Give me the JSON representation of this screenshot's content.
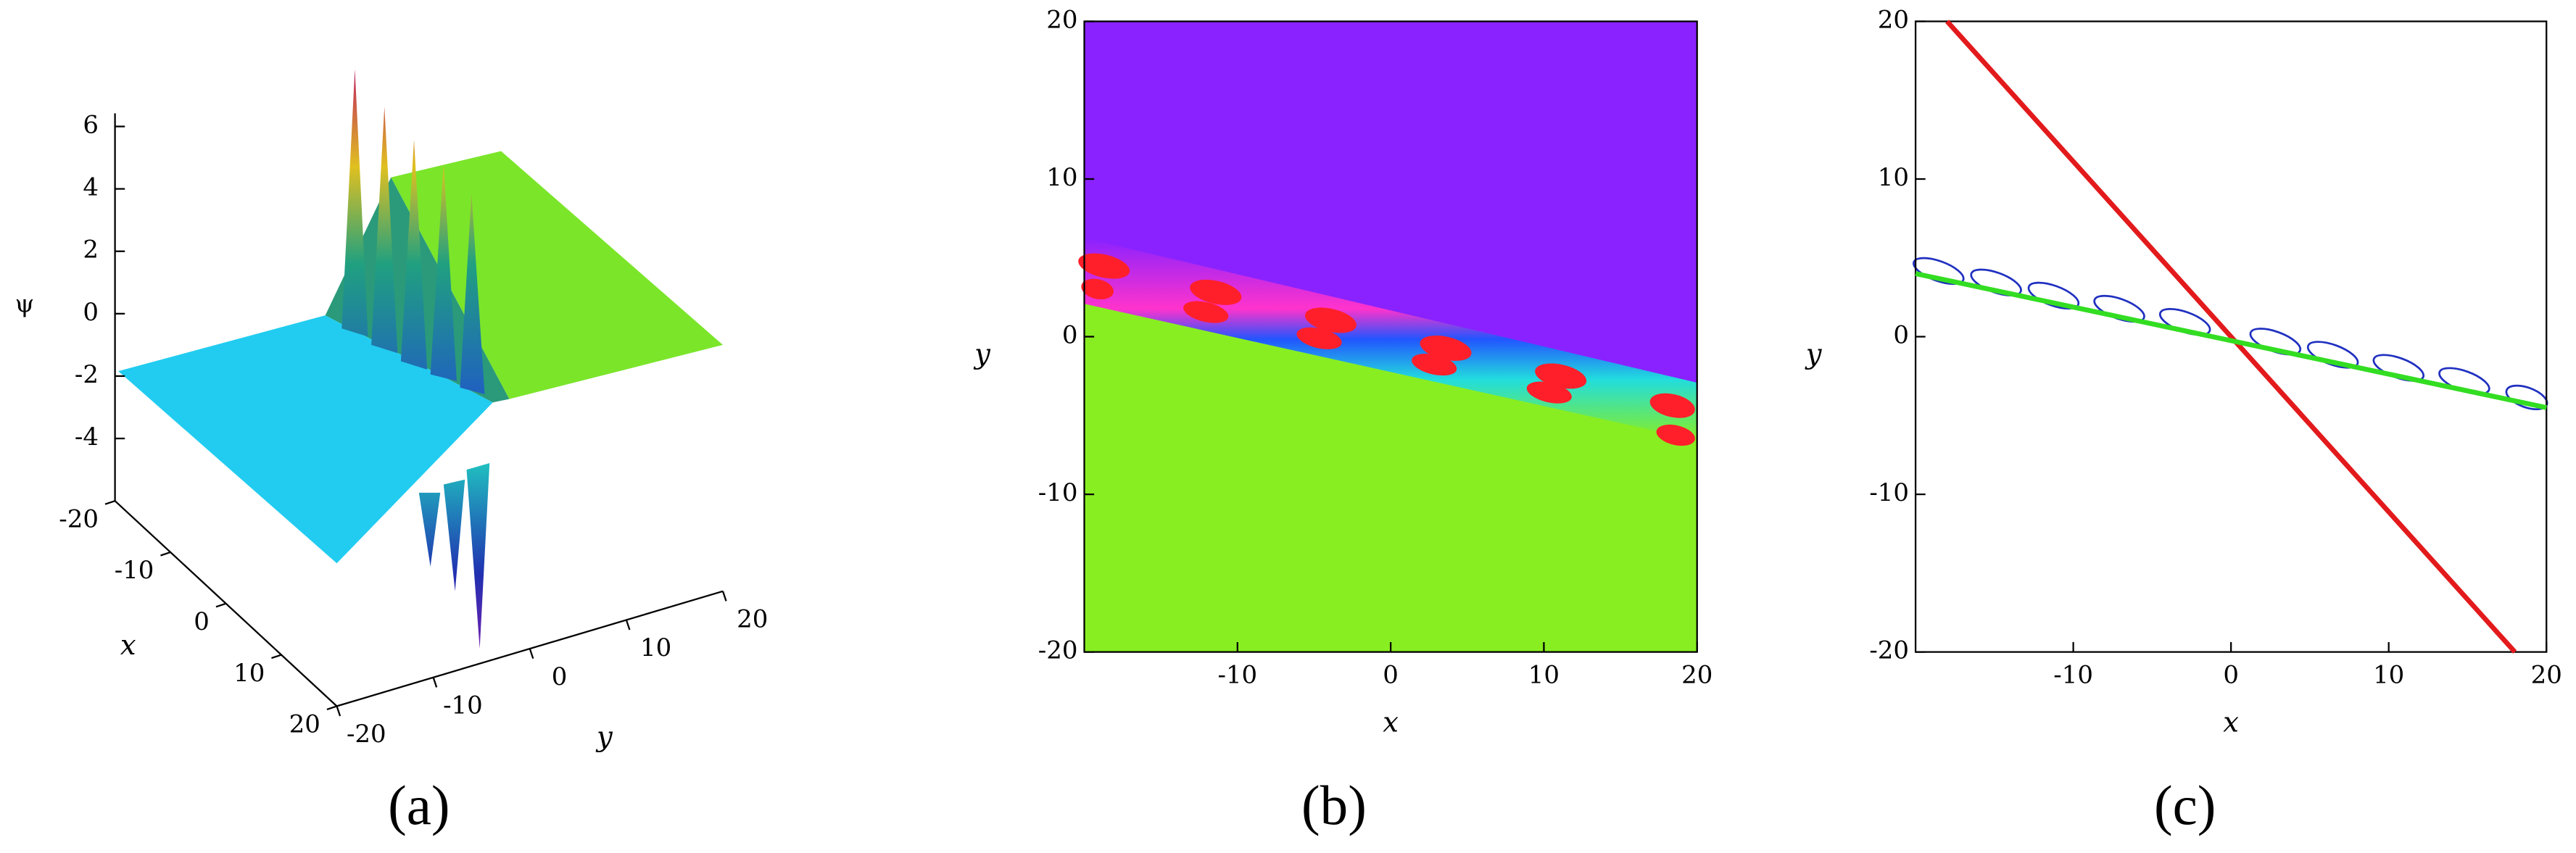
{
  "chart_data": [
    {
      "type": "surface3d",
      "caption": "(a)",
      "xlabel": "x",
      "ylabel": "y",
      "zlabel": "ψ",
      "xlim": [
        -20,
        20
      ],
      "ylim": [
        -20,
        20
      ],
      "zlim": [
        -6,
        6
      ],
      "xticks": [
        -20,
        -10,
        0,
        10,
        20
      ],
      "yticks": [
        -20,
        -10,
        0,
        10,
        20
      ],
      "zticks": [
        -4,
        -2,
        0,
        2,
        4,
        6
      ]
    },
    {
      "type": "density",
      "caption": "(b)",
      "xlabel": "x",
      "ylabel": "y",
      "xlim": [
        -20,
        20
      ],
      "ylim": [
        -20,
        20
      ],
      "xticks": [
        -10,
        0,
        10,
        20
      ],
      "yticks": [
        -20,
        -10,
        0,
        10,
        20
      ]
    },
    {
      "type": "line",
      "caption": "(c)",
      "xlabel": "x",
      "ylabel": "y",
      "xlim": [
        -20,
        20
      ],
      "ylim": [
        -20,
        20
      ],
      "xticks": [
        -10,
        0,
        10,
        20
      ],
      "yticks": [
        -20,
        -10,
        0,
        10,
        20
      ],
      "series": [
        {
          "color": "#e31a1c",
          "x": [
            -18,
            18
          ],
          "values": [
            20,
            -20
          ]
        },
        {
          "color": "#33dd22",
          "x": [
            -20,
            20
          ],
          "values": [
            4,
            -4.5
          ]
        }
      ]
    }
  ]
}
